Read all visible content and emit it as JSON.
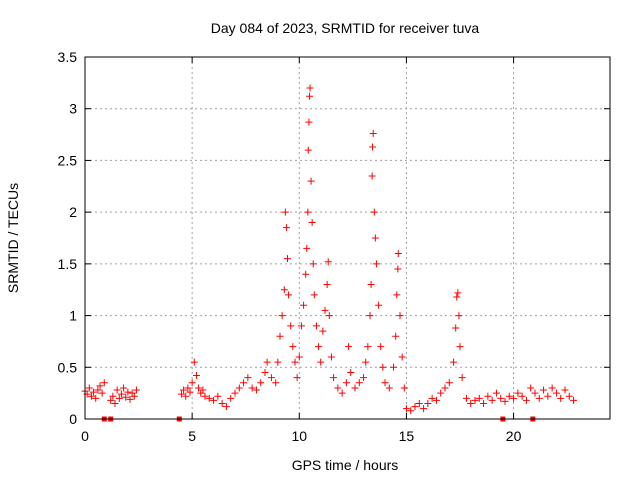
{
  "chart_data": {
    "type": "scatter",
    "title": "Day 084 of 2023, SRMTID for receiver tuva",
    "xlabel": "GPS time / hours",
    "ylabel": "SRMTID / TECUs",
    "xlim": [
      0,
      24.5
    ],
    "ylim": [
      0,
      3.5
    ],
    "x_ticks": [
      0,
      5,
      10,
      15,
      20
    ],
    "y_ticks": [
      0,
      0.5,
      1,
      1.5,
      2,
      2.5,
      3,
      3.5
    ],
    "x_tick_labels": [
      "0",
      "5",
      "10",
      "15",
      "20"
    ],
    "y_tick_labels": [
      "0",
      "0.5",
      "1",
      "1.5",
      "2",
      "2.5",
      "3",
      "3.5"
    ],
    "grid": true,
    "marker": "+",
    "color": "#ff0000",
    "series": [
      {
        "name": "SRMTID",
        "points": [
          [
            0.0,
            0.27
          ],
          [
            0.1,
            0.24
          ],
          [
            0.2,
            0.3
          ],
          [
            0.3,
            0.22
          ],
          [
            0.4,
            0.26
          ],
          [
            0.5,
            0.2
          ],
          [
            0.6,
            0.28
          ],
          [
            0.7,
            0.32
          ],
          [
            0.8,
            0.25
          ],
          [
            0.9,
            0.35
          ],
          [
            1.2,
            0.18
          ],
          [
            1.3,
            0.22
          ],
          [
            1.4,
            0.15
          ],
          [
            1.5,
            0.28
          ],
          [
            1.6,
            0.2
          ],
          [
            1.7,
            0.24
          ],
          [
            1.8,
            0.3
          ],
          [
            1.9,
            0.21
          ],
          [
            2.0,
            0.26
          ],
          [
            2.1,
            0.19
          ],
          [
            2.2,
            0.25
          ],
          [
            2.3,
            0.22
          ],
          [
            2.4,
            0.28
          ],
          [
            4.5,
            0.24
          ],
          [
            4.6,
            0.28
          ],
          [
            4.7,
            0.22
          ],
          [
            4.8,
            0.3
          ],
          [
            4.9,
            0.26
          ],
          [
            5.0,
            0.35
          ],
          [
            5.1,
            0.55
          ],
          [
            5.2,
            0.42
          ],
          [
            5.3,
            0.3
          ],
          [
            5.4,
            0.25
          ],
          [
            5.5,
            0.28
          ],
          [
            5.6,
            0.22
          ],
          [
            5.8,
            0.2
          ],
          [
            6.0,
            0.18
          ],
          [
            6.2,
            0.22
          ],
          [
            6.4,
            0.15
          ],
          [
            6.6,
            0.12
          ],
          [
            6.8,
            0.2
          ],
          [
            7.0,
            0.25
          ],
          [
            7.2,
            0.3
          ],
          [
            7.4,
            0.35
          ],
          [
            7.6,
            0.4
          ],
          [
            7.8,
            0.3
          ],
          [
            8.0,
            0.28
          ],
          [
            8.2,
            0.35
          ],
          [
            8.4,
            0.45
          ],
          [
            8.5,
            0.55
          ],
          [
            8.7,
            0.4
          ],
          [
            8.9,
            0.35
          ],
          [
            9.0,
            0.55
          ],
          [
            9.1,
            0.8
          ],
          [
            9.2,
            1.0
          ],
          [
            9.3,
            1.25
          ],
          [
            9.35,
            2.0
          ],
          [
            9.4,
            1.85
          ],
          [
            9.45,
            1.55
          ],
          [
            9.5,
            1.2
          ],
          [
            9.6,
            0.9
          ],
          [
            9.7,
            0.7
          ],
          [
            9.8,
            0.55
          ],
          [
            9.9,
            0.4
          ],
          [
            10.0,
            0.6
          ],
          [
            10.1,
            0.9
          ],
          [
            10.2,
            1.1
          ],
          [
            10.3,
            1.4
          ],
          [
            10.35,
            1.65
          ],
          [
            10.4,
            2.0
          ],
          [
            10.42,
            2.6
          ],
          [
            10.45,
            2.87
          ],
          [
            10.48,
            3.12
          ],
          [
            10.5,
            3.2
          ],
          [
            10.55,
            2.3
          ],
          [
            10.6,
            1.9
          ],
          [
            10.65,
            1.5
          ],
          [
            10.7,
            1.2
          ],
          [
            10.8,
            0.9
          ],
          [
            10.9,
            0.7
          ],
          [
            11.0,
            0.55
          ],
          [
            11.1,
            0.85
          ],
          [
            11.2,
            1.05
          ],
          [
            11.3,
            1.3
          ],
          [
            11.35,
            1.52
          ],
          [
            11.4,
            1.0
          ],
          [
            11.5,
            0.6
          ],
          [
            11.6,
            0.4
          ],
          [
            11.8,
            0.3
          ],
          [
            12.0,
            0.25
          ],
          [
            12.2,
            0.35
          ],
          [
            12.3,
            0.7
          ],
          [
            12.4,
            0.45
          ],
          [
            12.6,
            0.3
          ],
          [
            12.8,
            0.35
          ],
          [
            13.0,
            0.4
          ],
          [
            13.1,
            0.55
          ],
          [
            13.2,
            0.7
          ],
          [
            13.3,
            1.0
          ],
          [
            13.35,
            1.3
          ],
          [
            13.4,
            2.35
          ],
          [
            13.42,
            2.63
          ],
          [
            13.45,
            2.76
          ],
          [
            13.5,
            2.0
          ],
          [
            13.55,
            1.75
          ],
          [
            13.6,
            1.5
          ],
          [
            13.7,
            1.1
          ],
          [
            13.8,
            0.7
          ],
          [
            13.9,
            0.5
          ],
          [
            14.0,
            0.35
          ],
          [
            14.2,
            0.3
          ],
          [
            14.4,
            0.5
          ],
          [
            14.5,
            0.8
          ],
          [
            14.55,
            1.2
          ],
          [
            14.6,
            1.45
          ],
          [
            14.62,
            1.6
          ],
          [
            14.7,
            1.0
          ],
          [
            14.8,
            0.6
          ],
          [
            14.9,
            0.3
          ],
          [
            15.0,
            0.1
          ],
          [
            15.2,
            0.08
          ],
          [
            15.4,
            0.12
          ],
          [
            15.6,
            0.15
          ],
          [
            15.8,
            0.1
          ],
          [
            16.0,
            0.15
          ],
          [
            16.2,
            0.2
          ],
          [
            16.4,
            0.18
          ],
          [
            16.6,
            0.25
          ],
          [
            16.8,
            0.3
          ],
          [
            17.0,
            0.35
          ],
          [
            17.2,
            0.55
          ],
          [
            17.3,
            0.88
          ],
          [
            17.35,
            1.18
          ],
          [
            17.4,
            1.22
          ],
          [
            17.45,
            1.0
          ],
          [
            17.5,
            0.7
          ],
          [
            17.6,
            0.4
          ],
          [
            17.8,
            0.2
          ],
          [
            18.0,
            0.15
          ],
          [
            18.2,
            0.18
          ],
          [
            18.4,
            0.2
          ],
          [
            18.6,
            0.15
          ],
          [
            18.8,
            0.22
          ],
          [
            19.0,
            0.18
          ],
          [
            19.2,
            0.25
          ],
          [
            19.4,
            0.2
          ],
          [
            19.6,
            0.17
          ],
          [
            19.8,
            0.22
          ],
          [
            20.0,
            0.2
          ],
          [
            20.2,
            0.25
          ],
          [
            20.4,
            0.22
          ],
          [
            20.6,
            0.18
          ],
          [
            20.8,
            0.3
          ],
          [
            21.0,
            0.25
          ],
          [
            21.2,
            0.2
          ],
          [
            21.4,
            0.28
          ],
          [
            21.6,
            0.22
          ],
          [
            21.8,
            0.3
          ],
          [
            22.0,
            0.25
          ],
          [
            22.2,
            0.2
          ],
          [
            22.4,
            0.28
          ],
          [
            22.6,
            0.22
          ],
          [
            22.8,
            0.18
          ]
        ]
      }
    ],
    "zero_markers_x": [
      0.9,
      1.2,
      4.4,
      19.5,
      20.9
    ]
  }
}
